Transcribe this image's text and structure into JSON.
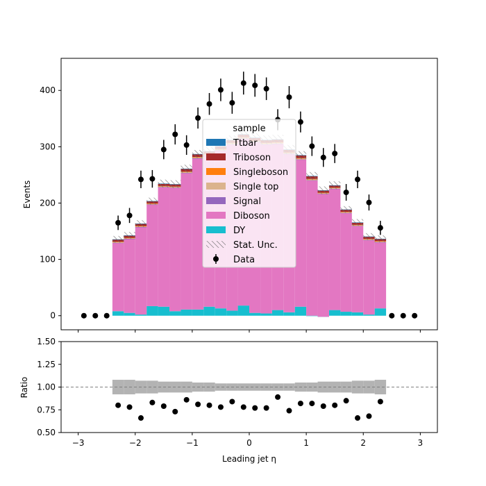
{
  "chart_data": [
    {
      "type": "bar",
      "subtype": "stacked-histogram",
      "xlabel": "",
      "ylabel": "Events",
      "xlim": [
        -3.3,
        3.3
      ],
      "ylim": [
        -25,
        457
      ],
      "yticks": [
        0,
        100,
        200,
        300,
        400
      ],
      "xticks": [
        -3,
        -2,
        -1,
        0,
        1,
        2,
        3
      ],
      "bin_edges": [
        -2.4,
        -2.2,
        -2.0,
        -1.8,
        -1.6,
        -1.4,
        -1.2,
        -1.0,
        -0.8,
        -0.6,
        -0.4,
        -0.2,
        0.0,
        0.2,
        0.4,
        0.6,
        0.8,
        1.0,
        1.2,
        1.4,
        1.6,
        1.8,
        2.0,
        2.2,
        2.4
      ],
      "series": [
        {
          "name": "DY",
          "color": "#17becf",
          "values": [
            8,
            5,
            2,
            17,
            16,
            8,
            11,
            11,
            16,
            13,
            9,
            18,
            5,
            4,
            10,
            6,
            16,
            0,
            -2,
            10,
            7,
            6,
            2,
            13
          ]
        },
        {
          "name": "Diboson",
          "color": "#e377c2",
          "values": [
            121,
            131,
            155,
            180,
            212,
            219,
            242,
            268,
            268,
            280,
            295,
            296,
            303,
            300,
            295,
            281,
            261,
            240,
            218,
            215,
            175,
            153,
            132,
            117
          ]
        },
        {
          "name": "Signal",
          "color": "#9467bd",
          "values": [
            0.5,
            0.5,
            0.5,
            0.5,
            0.5,
            0.5,
            0.5,
            0.5,
            0.5,
            0.5,
            0.5,
            0.5,
            0.5,
            0.5,
            0.5,
            0.5,
            0.5,
            0.5,
            0.5,
            0.5,
            0.5,
            0.5,
            0.5,
            0.5
          ]
        },
        {
          "name": "Single top",
          "color": "#dbb38d",
          "values": [
            1.5,
            1.5,
            1.5,
            1.5,
            1.5,
            1.5,
            2,
            2,
            2,
            2,
            2,
            2,
            2,
            2,
            2,
            2,
            2,
            2,
            1.5,
            1.5,
            1.5,
            1.5,
            1.5,
            1.5
          ]
        },
        {
          "name": "Singleboson",
          "color": "#ff7f0e",
          "values": [
            0.3,
            0.3,
            0.3,
            0.3,
            0.3,
            0.3,
            0.3,
            0.3,
            0.3,
            0.3,
            0.3,
            0.3,
            0.3,
            0.3,
            0.3,
            0.3,
            0.3,
            0.3,
            0.3,
            0.3,
            0.3,
            0.3,
            0.3,
            0.3
          ]
        },
        {
          "name": "Triboson",
          "color": "#a52a2a",
          "values": [
            4,
            4,
            4,
            4,
            4,
            4,
            5,
            5,
            5,
            5,
            5,
            5,
            5,
            5,
            5,
            5,
            5,
            5,
            4,
            4,
            4,
            4,
            4,
            4
          ]
        },
        {
          "name": "Ttbar",
          "color": "#1f77b4",
          "values": [
            0.3,
            0.3,
            0.3,
            0.3,
            0.3,
            0.3,
            0.3,
            0.3,
            0.3,
            0.3,
            0.3,
            0.3,
            0.3,
            0.3,
            0.3,
            0.3,
            0.3,
            0.3,
            0.3,
            0.3,
            0.3,
            0.3,
            0.3,
            0.3
          ]
        }
      ],
      "uncertainty": {
        "name": "Stat. Unc.",
        "values": [
          6,
          6,
          6,
          6,
          7,
          7,
          7,
          7,
          7,
          8,
          8,
          8,
          8,
          8,
          8,
          8,
          7,
          7,
          7,
          7,
          6,
          6,
          6,
          6
        ]
      },
      "data": {
        "name": "Data",
        "x": [
          -2.9,
          -2.7,
          -2.5,
          -2.3,
          -2.1,
          -1.9,
          -1.7,
          -1.5,
          -1.3,
          -1.1,
          -0.9,
          -0.7,
          -0.5,
          -0.3,
          -0.1,
          0.1,
          0.3,
          0.5,
          0.7,
          0.9,
          1.1,
          1.3,
          1.5,
          1.7,
          1.9,
          2.1,
          2.3,
          2.5,
          2.7,
          2.9
        ],
        "y": [
          0,
          0,
          0,
          165,
          178,
          242,
          243,
          295,
          322,
          303,
          351,
          376,
          401,
          378,
          413,
          409,
          403,
          348,
          388,
          344,
          301,
          281,
          288,
          219,
          242,
          201,
          156,
          0,
          0,
          0
        ]
      },
      "legend": {
        "title": "sample",
        "placement": "center"
      }
    },
    {
      "type": "scatter",
      "subtype": "ratio",
      "xlabel": "Leading jet  η",
      "ylabel": "Ratio",
      "xlim": [
        -3.3,
        3.3
      ],
      "ylim": [
        0.5,
        1.5
      ],
      "yticks": [
        "0.50",
        "0.75",
        "1.00",
        "1.25",
        "1.50"
      ],
      "xticks": [
        "−3",
        "−2",
        "−1",
        "0",
        "1",
        "2",
        "3"
      ],
      "reference_line": 1.0,
      "uncertainty_band": {
        "lower": [
          0.92,
          0.92,
          0.93,
          0.93,
          0.94,
          0.94,
          0.94,
          0.95,
          0.95,
          0.96,
          0.96,
          0.96,
          0.96,
          0.96,
          0.96,
          0.96,
          0.95,
          0.95,
          0.94,
          0.94,
          0.94,
          0.93,
          0.93,
          0.92
        ],
        "upper": [
          1.08,
          1.08,
          1.07,
          1.07,
          1.06,
          1.06,
          1.06,
          1.05,
          1.05,
          1.04,
          1.04,
          1.04,
          1.04,
          1.04,
          1.04,
          1.04,
          1.05,
          1.05,
          1.06,
          1.06,
          1.06,
          1.07,
          1.07,
          1.08
        ]
      },
      "points": {
        "x": [
          -2.3,
          -2.1,
          -1.9,
          -1.7,
          -1.5,
          -1.3,
          -1.1,
          -0.9,
          -0.7,
          -0.5,
          -0.3,
          -0.1,
          0.1,
          0.3,
          0.5,
          0.7,
          0.9,
          1.1,
          1.3,
          1.5,
          1.7,
          1.9,
          2.1,
          2.3
        ],
        "y": [
          0.8,
          0.78,
          0.66,
          0.83,
          0.79,
          0.73,
          0.86,
          0.81,
          0.8,
          0.78,
          0.84,
          0.78,
          0.77,
          0.77,
          0.89,
          0.74,
          0.82,
          0.82,
          0.79,
          0.8,
          0.85,
          0.66,
          0.68,
          0.84
        ]
      }
    }
  ],
  "top_ytick_labels": [
    "0",
    "100",
    "200",
    "300",
    "400"
  ]
}
